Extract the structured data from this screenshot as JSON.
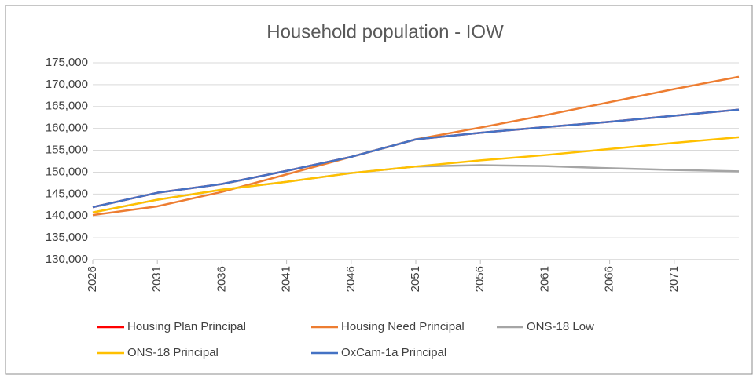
{
  "chart_data": {
    "type": "line",
    "title": "Household population - IOW",
    "x": [
      2026,
      2031,
      2036,
      2041,
      2046,
      2051,
      2056,
      2061,
      2066,
      2071,
      2076
    ],
    "xlim": [
      2026,
      2076
    ],
    "xticks": [
      2026,
      2031,
      2036,
      2041,
      2046,
      2051,
      2056,
      2061,
      2066,
      2071
    ],
    "ylim": [
      130000,
      175000
    ],
    "yticks": [
      {
        "value": 130000,
        "label": "130,000"
      },
      {
        "value": 135000,
        "label": "135,000"
      },
      {
        "value": 140000,
        "label": "140,000"
      },
      {
        "value": 145000,
        "label": "145,000"
      },
      {
        "value": 150000,
        "label": "150,000"
      },
      {
        "value": 155000,
        "label": "155,000"
      },
      {
        "value": 160000,
        "label": "160,000"
      },
      {
        "value": 165000,
        "label": "165,000"
      },
      {
        "value": 170000,
        "label": "170,000"
      },
      {
        "value": 175000,
        "label": "175,000"
      }
    ],
    "grid": true,
    "legend": "bottom",
    "series": [
      {
        "name": "Housing Plan Principal",
        "color": "#ff0000",
        "values": [
          142000,
          145300,
          147300,
          150300,
          153500,
          157500,
          159000,
          160300,
          161500,
          162900,
          164300
        ]
      },
      {
        "name": "Housing Need Principal",
        "color": "#ed7d31",
        "values": [
          140200,
          142200,
          145500,
          149500,
          153500,
          157500,
          160200,
          163000,
          166000,
          169000,
          171800
        ]
      },
      {
        "name": "ONS-18 Low",
        "color": "#a5a5a5",
        "values": [
          140800,
          143700,
          146000,
          147800,
          149800,
          151300,
          151600,
          151400,
          150900,
          150500,
          150200
        ]
      },
      {
        "name": "ONS-18 Principal",
        "color": "#ffc000",
        "values": [
          140800,
          143700,
          146000,
          147800,
          149800,
          151300,
          152700,
          153900,
          155300,
          156700,
          158000
        ]
      },
      {
        "name": "OxCam-1a Principal",
        "color": "#4472c4",
        "values": [
          142000,
          145300,
          147300,
          150300,
          153500,
          157500,
          159000,
          160300,
          161500,
          162900,
          164300
        ]
      }
    ]
  }
}
